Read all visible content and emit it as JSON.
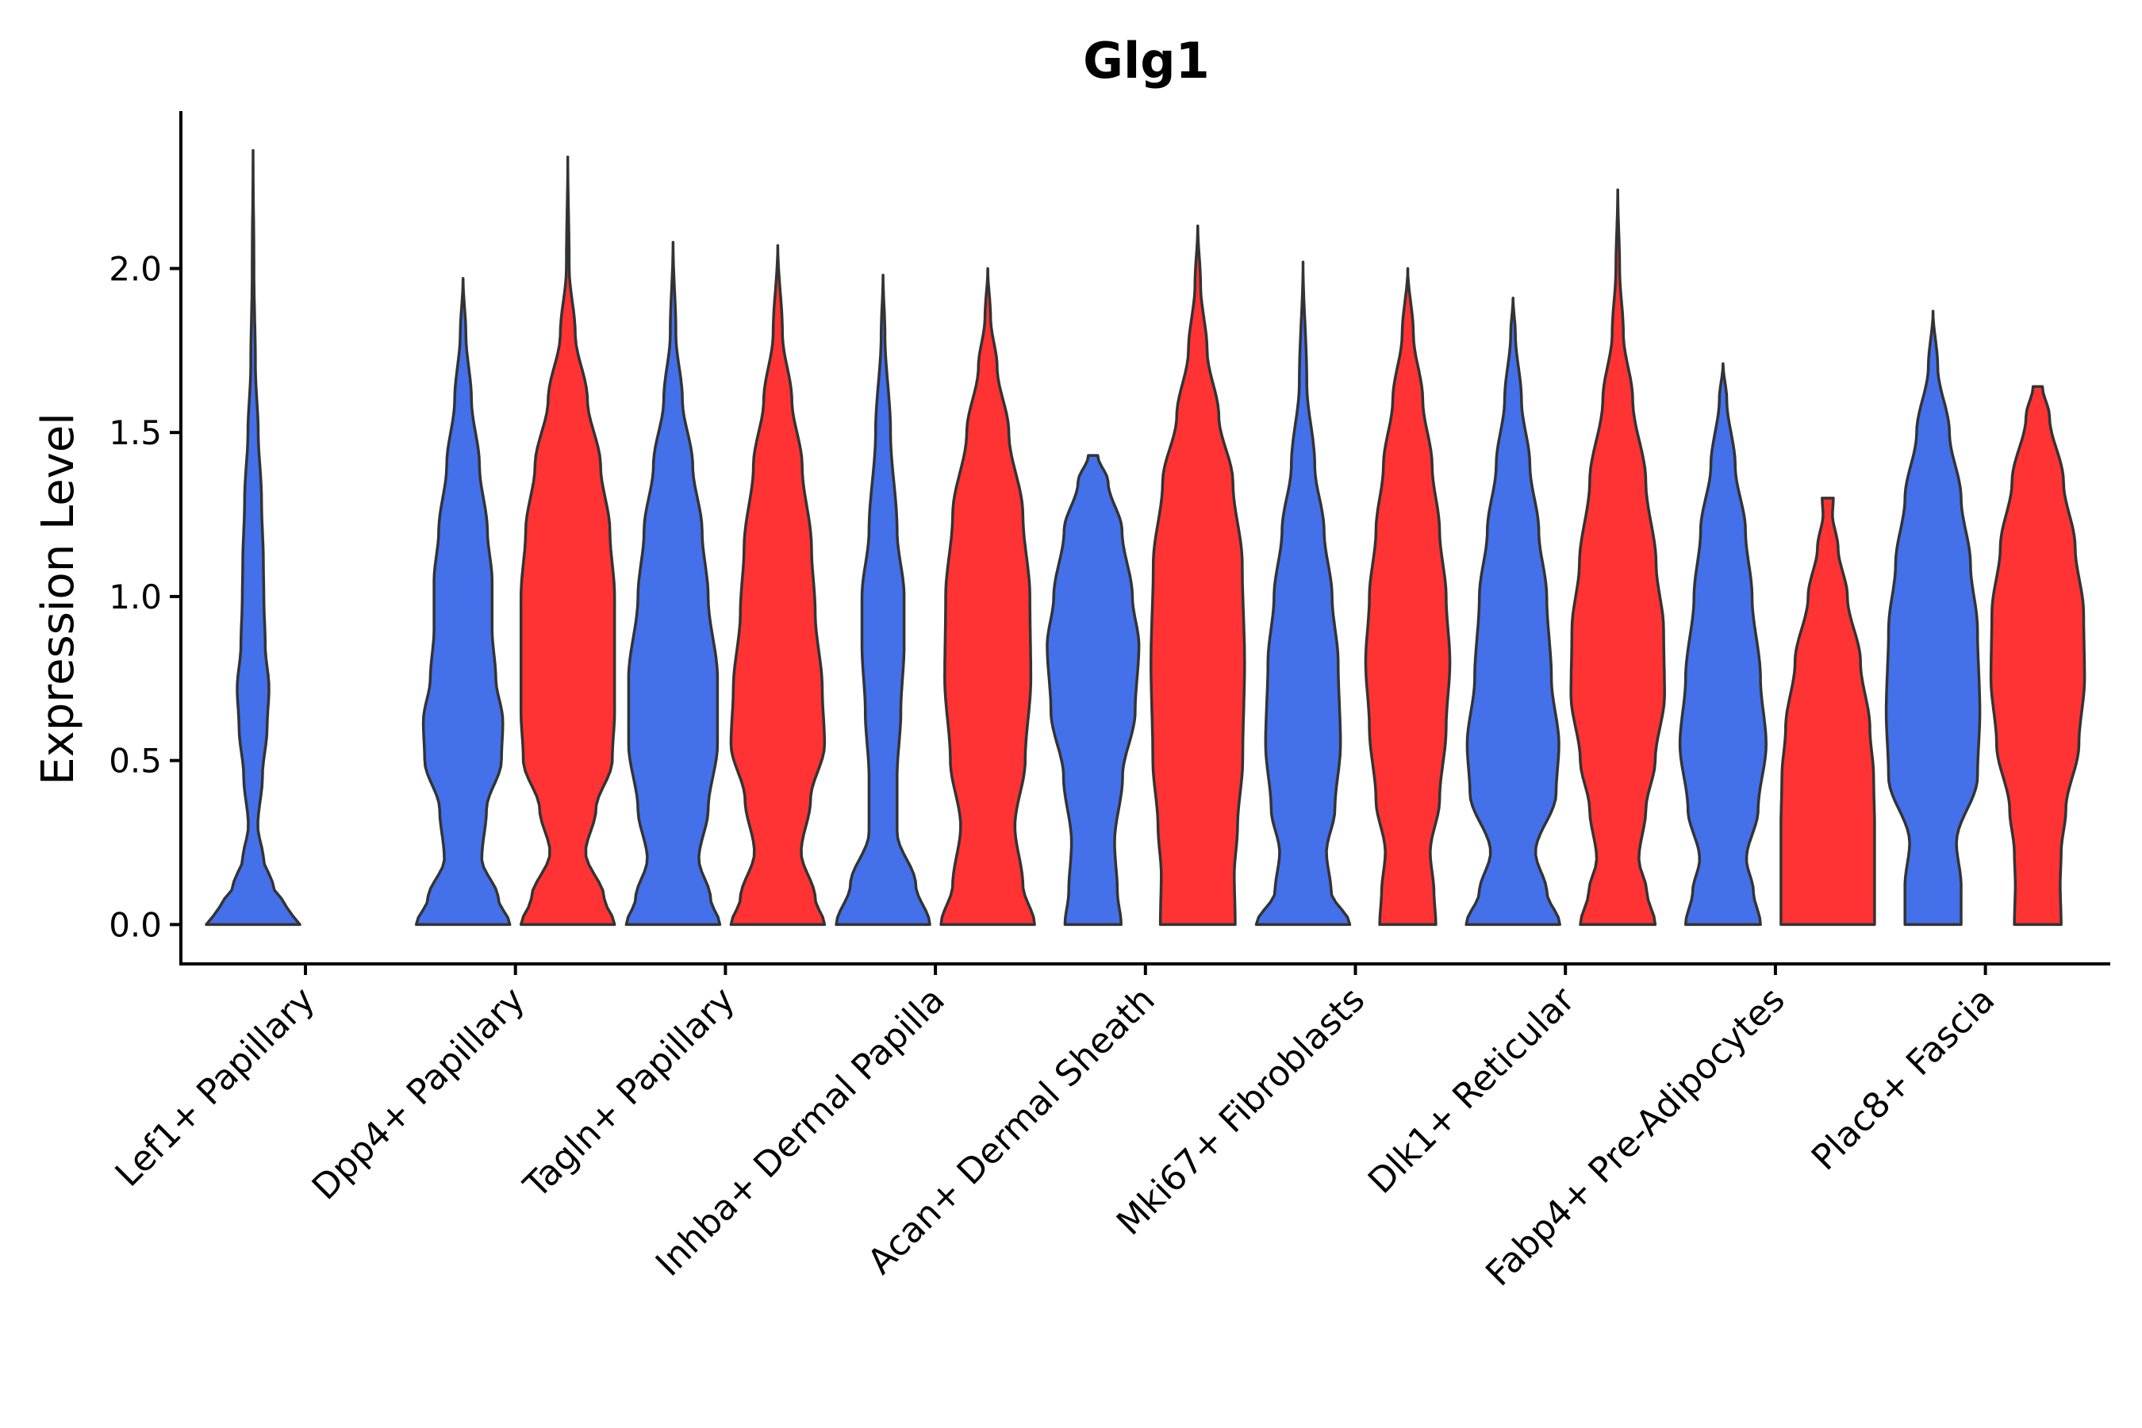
{
  "chart_data": {
    "type": "violin",
    "title": "Glg1",
    "xlabel": "",
    "ylabel": "Expression Level",
    "ylim": [
      -0.12,
      2.48
    ],
    "yticks": [
      0.0,
      0.5,
      1.0,
      1.5,
      2.0
    ],
    "ytick_labels": [
      "0.0",
      "0.5",
      "1.0",
      "1.5",
      "2.0"
    ],
    "categories": [
      "Lef1+ Papillary",
      "Dpp4+ Papillary",
      "Tagln+ Papillary",
      "Inhba+ Dermal Papilla",
      "Acan+ Dermal Sheath",
      "Mki67+ Fibroblasts",
      "Dlk1+ Reticular",
      "Fabp4+ Pre-Adipocytes",
      "Plac8+ Fascia"
    ],
    "series_colors": [
      "#4470EA",
      "#FF3333"
    ],
    "violins": [
      {
        "category_index": 0,
        "color": "#4470EA",
        "max": 2.36,
        "profile": [
          [
            0.0,
            1.0
          ],
          [
            0.05,
            0.72
          ],
          [
            0.12,
            0.42
          ],
          [
            0.2,
            0.22
          ],
          [
            0.3,
            0.1
          ],
          [
            0.45,
            0.2
          ],
          [
            0.6,
            0.3
          ],
          [
            0.72,
            0.34
          ],
          [
            0.85,
            0.26
          ],
          [
            1.0,
            0.23
          ],
          [
            1.1,
            0.22
          ],
          [
            1.3,
            0.18
          ],
          [
            1.5,
            0.11
          ],
          [
            1.7,
            0.05
          ],
          [
            2.0,
            0.018
          ],
          [
            2.36,
            0.0
          ]
        ]
      },
      {
        "category_index": 1,
        "color": "#4470EA",
        "max": 1.97,
        "profile": [
          [
            0.0,
            1.0
          ],
          [
            0.08,
            0.75
          ],
          [
            0.2,
            0.4
          ],
          [
            0.35,
            0.5
          ],
          [
            0.5,
            0.82
          ],
          [
            0.62,
            0.85
          ],
          [
            0.75,
            0.7
          ],
          [
            0.9,
            0.62
          ],
          [
            1.05,
            0.62
          ],
          [
            1.2,
            0.52
          ],
          [
            1.4,
            0.35
          ],
          [
            1.6,
            0.18
          ],
          [
            1.8,
            0.06
          ],
          [
            1.97,
            0.0
          ]
        ]
      },
      {
        "category_index": 1,
        "color": "#FF3333",
        "max": 2.34,
        "profile": [
          [
            0.0,
            1.0
          ],
          [
            0.08,
            0.78
          ],
          [
            0.22,
            0.38
          ],
          [
            0.35,
            0.6
          ],
          [
            0.5,
            0.95
          ],
          [
            0.65,
            1.0
          ],
          [
            0.8,
            1.0
          ],
          [
            1.0,
            1.0
          ],
          [
            1.2,
            0.9
          ],
          [
            1.4,
            0.7
          ],
          [
            1.6,
            0.42
          ],
          [
            1.8,
            0.16
          ],
          [
            2.0,
            0.03
          ],
          [
            2.34,
            0.0
          ]
        ]
      },
      {
        "category_index": 2,
        "color": "#4470EA",
        "max": 2.08,
        "profile": [
          [
            0.0,
            1.0
          ],
          [
            0.08,
            0.8
          ],
          [
            0.2,
            0.55
          ],
          [
            0.35,
            0.75
          ],
          [
            0.55,
            0.95
          ],
          [
            0.75,
            0.95
          ],
          [
            1.0,
            0.75
          ],
          [
            1.2,
            0.62
          ],
          [
            1.4,
            0.42
          ],
          [
            1.6,
            0.2
          ],
          [
            1.8,
            0.06
          ],
          [
            2.08,
            0.0
          ]
        ]
      },
      {
        "category_index": 2,
        "color": "#FF3333",
        "max": 2.07,
        "profile": [
          [
            0.0,
            1.0
          ],
          [
            0.08,
            0.8
          ],
          [
            0.22,
            0.5
          ],
          [
            0.38,
            0.7
          ],
          [
            0.55,
            1.0
          ],
          [
            0.72,
            0.95
          ],
          [
            0.95,
            0.8
          ],
          [
            1.15,
            0.72
          ],
          [
            1.4,
            0.52
          ],
          [
            1.6,
            0.3
          ],
          [
            1.8,
            0.1
          ],
          [
            2.07,
            0.0
          ]
        ]
      },
      {
        "category_index": 3,
        "color": "#4470EA",
        "max": 1.98,
        "profile": [
          [
            0.0,
            1.0
          ],
          [
            0.12,
            0.7
          ],
          [
            0.28,
            0.3
          ],
          [
            0.45,
            0.3
          ],
          [
            0.65,
            0.38
          ],
          [
            0.85,
            0.45
          ],
          [
            1.0,
            0.45
          ],
          [
            1.2,
            0.3
          ],
          [
            1.5,
            0.16
          ],
          [
            1.8,
            0.04
          ],
          [
            1.98,
            0.0
          ]
        ]
      },
      {
        "category_index": 3,
        "color": "#FF3333",
        "max": 2.0,
        "profile": [
          [
            0.0,
            1.0
          ],
          [
            0.12,
            0.75
          ],
          [
            0.3,
            0.58
          ],
          [
            0.5,
            0.8
          ],
          [
            0.75,
            0.92
          ],
          [
            1.0,
            0.9
          ],
          [
            1.25,
            0.75
          ],
          [
            1.5,
            0.45
          ],
          [
            1.7,
            0.2
          ],
          [
            1.85,
            0.06
          ],
          [
            2.0,
            0.0
          ]
        ]
      },
      {
        "category_index": 4,
        "color": "#4470EA",
        "max": 1.43,
        "profile": [
          [
            0.0,
            0.6
          ],
          [
            0.1,
            0.52
          ],
          [
            0.25,
            0.46
          ],
          [
            0.45,
            0.63
          ],
          [
            0.65,
            0.9
          ],
          [
            0.85,
            0.98
          ],
          [
            1.0,
            0.84
          ],
          [
            1.2,
            0.62
          ],
          [
            1.35,
            0.32
          ],
          [
            1.43,
            0.1
          ]
        ]
      },
      {
        "category_index": 4,
        "color": "#FF3333",
        "max": 2.13,
        "profile": [
          [
            0.0,
            0.8
          ],
          [
            0.15,
            0.78
          ],
          [
            0.3,
            0.85
          ],
          [
            0.5,
            0.96
          ],
          [
            0.8,
            1.0
          ],
          [
            1.1,
            0.95
          ],
          [
            1.35,
            0.75
          ],
          [
            1.55,
            0.45
          ],
          [
            1.75,
            0.2
          ],
          [
            1.95,
            0.06
          ],
          [
            2.13,
            0.0
          ]
        ]
      },
      {
        "category_index": 5,
        "color": "#4470EA",
        "max": 2.02,
        "profile": [
          [
            0.0,
            1.0
          ],
          [
            0.1,
            0.6
          ],
          [
            0.22,
            0.5
          ],
          [
            0.35,
            0.68
          ],
          [
            0.55,
            0.8
          ],
          [
            0.8,
            0.75
          ],
          [
            1.0,
            0.62
          ],
          [
            1.2,
            0.45
          ],
          [
            1.4,
            0.25
          ],
          [
            1.65,
            0.08
          ],
          [
            2.02,
            0.0
          ]
        ]
      },
      {
        "category_index": 5,
        "color": "#FF3333",
        "max": 2.0,
        "profile": [
          [
            0.0,
            0.6
          ],
          [
            0.1,
            0.56
          ],
          [
            0.22,
            0.48
          ],
          [
            0.38,
            0.68
          ],
          [
            0.6,
            0.82
          ],
          [
            0.8,
            0.9
          ],
          [
            1.0,
            0.82
          ],
          [
            1.2,
            0.68
          ],
          [
            1.4,
            0.52
          ],
          [
            1.6,
            0.32
          ],
          [
            1.8,
            0.12
          ],
          [
            2.0,
            0.0
          ]
        ]
      },
      {
        "category_index": 6,
        "color": "#4470EA",
        "max": 1.91,
        "profile": [
          [
            0.0,
            1.0
          ],
          [
            0.1,
            0.72
          ],
          [
            0.22,
            0.48
          ],
          [
            0.4,
            0.92
          ],
          [
            0.55,
            0.98
          ],
          [
            0.75,
            0.82
          ],
          [
            1.0,
            0.72
          ],
          [
            1.2,
            0.55
          ],
          [
            1.4,
            0.36
          ],
          [
            1.6,
            0.18
          ],
          [
            1.8,
            0.05
          ],
          [
            1.91,
            0.0
          ]
        ]
      },
      {
        "category_index": 6,
        "color": "#FF3333",
        "max": 2.24,
        "profile": [
          [
            0.0,
            0.8
          ],
          [
            0.1,
            0.62
          ],
          [
            0.2,
            0.45
          ],
          [
            0.35,
            0.6
          ],
          [
            0.5,
            0.8
          ],
          [
            0.7,
            1.0
          ],
          [
            0.9,
            0.98
          ],
          [
            1.1,
            0.82
          ],
          [
            1.35,
            0.6
          ],
          [
            1.6,
            0.32
          ],
          [
            1.8,
            0.12
          ],
          [
            2.0,
            0.04
          ],
          [
            2.24,
            0.0
          ]
        ]
      },
      {
        "category_index": 7,
        "color": "#4470EA",
        "max": 1.71,
        "profile": [
          [
            0.0,
            0.8
          ],
          [
            0.1,
            0.65
          ],
          [
            0.2,
            0.5
          ],
          [
            0.35,
            0.75
          ],
          [
            0.55,
            0.92
          ],
          [
            0.75,
            0.8
          ],
          [
            1.0,
            0.62
          ],
          [
            1.2,
            0.48
          ],
          [
            1.4,
            0.26
          ],
          [
            1.6,
            0.08
          ],
          [
            1.71,
            0.0
          ]
        ]
      },
      {
        "category_index": 7,
        "color": "#FF3333",
        "max": 1.3,
        "profile": [
          [
            0.0,
            1.0
          ],
          [
            0.15,
            1.0
          ],
          [
            0.3,
            1.0
          ],
          [
            0.45,
            0.98
          ],
          [
            0.6,
            0.9
          ],
          [
            0.8,
            0.7
          ],
          [
            1.0,
            0.42
          ],
          [
            1.15,
            0.22
          ],
          [
            1.25,
            0.1
          ],
          [
            1.3,
            0.12
          ]
        ]
      },
      {
        "category_index": 8,
        "color": "#4470EA",
        "max": 1.87,
        "profile": [
          [
            0.0,
            0.6
          ],
          [
            0.12,
            0.6
          ],
          [
            0.25,
            0.5
          ],
          [
            0.45,
            0.95
          ],
          [
            0.65,
            1.0
          ],
          [
            0.9,
            0.95
          ],
          [
            1.1,
            0.8
          ],
          [
            1.3,
            0.6
          ],
          [
            1.5,
            0.35
          ],
          [
            1.7,
            0.1
          ],
          [
            1.87,
            0.0
          ]
        ]
      },
      {
        "category_index": 8,
        "color": "#FF3333",
        "max": 1.64,
        "profile": [
          [
            0.0,
            0.5
          ],
          [
            0.12,
            0.48
          ],
          [
            0.22,
            0.5
          ],
          [
            0.35,
            0.6
          ],
          [
            0.55,
            0.88
          ],
          [
            0.75,
            1.0
          ],
          [
            0.95,
            0.98
          ],
          [
            1.15,
            0.8
          ],
          [
            1.35,
            0.55
          ],
          [
            1.55,
            0.25
          ],
          [
            1.64,
            0.1
          ]
        ]
      }
    ]
  }
}
